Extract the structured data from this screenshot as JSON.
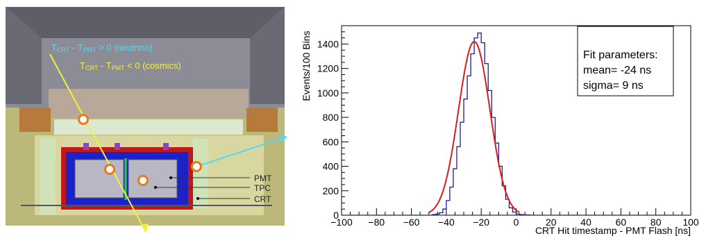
{
  "detector": {
    "label_neutrino": "T_CRT - T_PMT > 0 (neutrino)",
    "label_cosmics": "T_CRT - T_PMT < 0 (cosmics)",
    "label_neutrino_parts": [
      "T",
      "CRT",
      " - T",
      "PMT",
      " > 0 (neutrino)"
    ],
    "label_cosmics_parts": [
      "T",
      "CRT",
      " - T",
      "PMT",
      " < 0 (cosmics)"
    ],
    "legend": [
      "PMT",
      "TPC",
      "CRT"
    ],
    "colors": {
      "neutrino_text": "#5ad6f0",
      "cosmics_text": "#f2f23a",
      "neutrino_track": "#5ad6f0",
      "cosmic_track": "#f2f23a"
    }
  },
  "chart_data": {
    "type": "histogram",
    "title": "",
    "xlabel": "CRT Hit timestamp - PMT Flash [ns]",
    "ylabel": "Events/100 Bins",
    "xlim": [
      -100,
      100
    ],
    "ylim": [
      0,
      1550
    ],
    "x_ticks": [
      -100,
      -80,
      -60,
      -40,
      -20,
      0,
      20,
      40,
      60,
      80,
      100
    ],
    "y_ticks": [
      0,
      200,
      400,
      600,
      800,
      1000,
      1200,
      1400
    ],
    "bin_width": 2,
    "bin_edges_start": -100,
    "counts": [
      0,
      0,
      0,
      0,
      0,
      0,
      0,
      0,
      0,
      0,
      0,
      0,
      0,
      0,
      0,
      0,
      0,
      0,
      0,
      0,
      0,
      0,
      0,
      0,
      0,
      0,
      5,
      10,
      20,
      50,
      120,
      230,
      380,
      560,
      760,
      950,
      1140,
      1320,
      1450,
      1490,
      1410,
      1240,
      1020,
      800,
      590,
      400,
      240,
      130,
      60,
      25,
      10,
      5,
      3,
      2,
      0,
      0,
      0,
      0,
      0,
      0,
      0,
      0,
      0,
      0,
      0,
      0,
      0,
      0,
      0,
      0,
      0,
      0,
      0,
      0,
      0,
      0,
      0,
      0,
      0,
      0,
      0,
      0,
      0,
      0,
      0,
      0,
      0,
      0,
      0,
      0,
      0,
      0,
      0,
      0,
      0,
      0,
      0,
      0,
      0,
      0
    ],
    "fit": {
      "function": "gaussian",
      "mean": -24,
      "sigma": 9,
      "amplitude": 1420,
      "range": [
        -50,
        2
      ]
    },
    "fit_box": {
      "title": "Fit parameters:",
      "lines": [
        "mean= -24 ns",
        "sigma= 9 ns"
      ]
    },
    "colors": {
      "histogram": "#1a1a9e",
      "fit": "#e01818"
    }
  }
}
